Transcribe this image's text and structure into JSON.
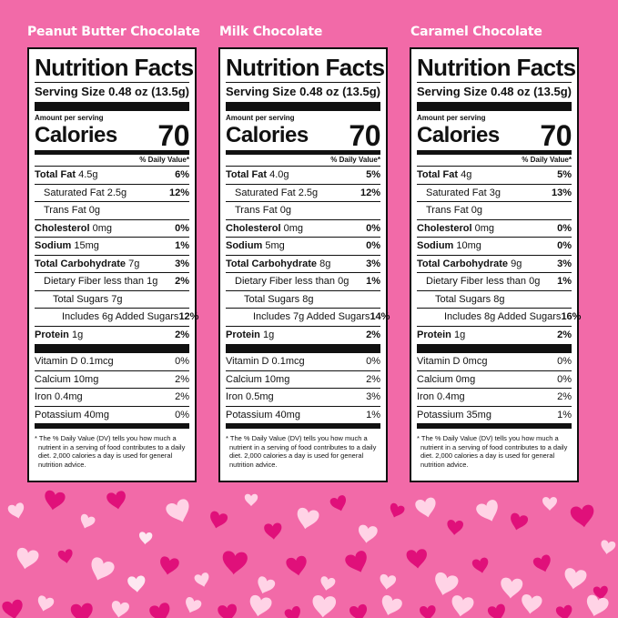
{
  "panels": [
    {
      "product": "Peanut Butter Chocolate",
      "title": "Nutrition Facts",
      "serving_label": "Serving Size",
      "serving_value": "0.48 oz (13.5g)",
      "amount_per_serving": "Amount per serving",
      "calories_label": "Calories",
      "calories_value": "70",
      "dv_header": "% Daily Value*",
      "nutrients": [
        {
          "name": "Total Fat",
          "amount": "4.5g",
          "dv": "6%",
          "bold": true,
          "indent": 0
        },
        {
          "name": "Saturated Fat",
          "amount": "2.5g",
          "dv": "12%",
          "bold": false,
          "indent": 1
        },
        {
          "name": "Trans Fat",
          "amount": "0g",
          "dv": "",
          "bold": false,
          "indent": 1
        },
        {
          "name": "Cholesterol",
          "amount": "0mg",
          "dv": "0%",
          "bold": true,
          "indent": 0
        },
        {
          "name": "Sodium",
          "amount": "15mg",
          "dv": "1%",
          "bold": true,
          "indent": 0
        },
        {
          "name": "Total Carbohydrate",
          "amount": "7g",
          "dv": "3%",
          "bold": true,
          "indent": 0
        },
        {
          "name": "Dietary Fiber less than",
          "amount": "1g",
          "dv": "2%",
          "bold": false,
          "indent": 1
        },
        {
          "name": "Total Sugars",
          "amount": "7g",
          "dv": "",
          "bold": false,
          "indent": 2
        },
        {
          "name": "Includes 6g Added Sugars",
          "amount": "",
          "dv": "12%",
          "bold": false,
          "indent": 3
        },
        {
          "name": "Protein",
          "amount": "1g",
          "dv": "2%",
          "bold": true,
          "indent": 0
        }
      ],
      "vitamins": [
        {
          "name": "Vitamin D",
          "amount": "0.1mcg",
          "dv": "0%"
        },
        {
          "name": "Calcium",
          "amount": "10mg",
          "dv": "2%"
        },
        {
          "name": "Iron",
          "amount": "0.4mg",
          "dv": "2%"
        },
        {
          "name": "Potassium",
          "amount": "40mg",
          "dv": "0%"
        }
      ],
      "footnote": "* The % Daily Value (DV) tells you how much a nutrient in a serving of food contributes to a daily diet. 2,000 calories a day is used for general nutrition advice."
    },
    {
      "product": "Milk Chocolate",
      "title": "Nutrition Facts",
      "serving_label": "Serving Size",
      "serving_value": "0.48 oz (13.5g)",
      "amount_per_serving": "Amount per serving",
      "calories_label": "Calories",
      "calories_value": "70",
      "dv_header": "% Daily Value*",
      "nutrients": [
        {
          "name": "Total Fat",
          "amount": "4.0g",
          "dv": "5%",
          "bold": true,
          "indent": 0
        },
        {
          "name": "Saturated Fat",
          "amount": "2.5g",
          "dv": "12%",
          "bold": false,
          "indent": 1
        },
        {
          "name": "Trans Fat",
          "amount": "0g",
          "dv": "",
          "bold": false,
          "indent": 1
        },
        {
          "name": "Cholesterol",
          "amount": "0mg",
          "dv": "0%",
          "bold": true,
          "indent": 0
        },
        {
          "name": "Sodium",
          "amount": "5mg",
          "dv": "0%",
          "bold": true,
          "indent": 0
        },
        {
          "name": "Total Carbohydrate",
          "amount": "8g",
          "dv": "3%",
          "bold": true,
          "indent": 0
        },
        {
          "name": "Dietary Fiber less than",
          "amount": "0g",
          "dv": "1%",
          "bold": false,
          "indent": 1
        },
        {
          "name": "Total Sugars",
          "amount": "8g",
          "dv": "",
          "bold": false,
          "indent": 2
        },
        {
          "name": "Includes 7g Added Sugars",
          "amount": "",
          "dv": "14%",
          "bold": false,
          "indent": 3
        },
        {
          "name": "Protein",
          "amount": "1g",
          "dv": "2%",
          "bold": true,
          "indent": 0
        }
      ],
      "vitamins": [
        {
          "name": "Vitamin D",
          "amount": "0.1mcg",
          "dv": "0%"
        },
        {
          "name": "Calcium",
          "amount": "10mg",
          "dv": "2%"
        },
        {
          "name": "Iron",
          "amount": "0.5mg",
          "dv": "3%"
        },
        {
          "name": "Potassium",
          "amount": "40mg",
          "dv": "1%"
        }
      ],
      "footnote": "* The % Daily Value (DV) tells you how much a nutrient in a serving of food contributes to a daily diet. 2,000 calories a day is used for general nutrition advice."
    },
    {
      "product": "Caramel Chocolate",
      "title": "Nutrition Facts",
      "serving_label": "Serving Size",
      "serving_value": "0.48 oz (13.5g)",
      "amount_per_serving": "Amount per serving",
      "calories_label": "Calories",
      "calories_value": "70",
      "dv_header": "% Daily Value*",
      "nutrients": [
        {
          "name": "Total Fat",
          "amount": "4g",
          "dv": "5%",
          "bold": true,
          "indent": 0
        },
        {
          "name": "Saturated Fat",
          "amount": "3g",
          "dv": "13%",
          "bold": false,
          "indent": 1
        },
        {
          "name": "Trans Fat",
          "amount": "0g",
          "dv": "",
          "bold": false,
          "indent": 1
        },
        {
          "name": "Cholesterol",
          "amount": "0mg",
          "dv": "0%",
          "bold": true,
          "indent": 0
        },
        {
          "name": "Sodium",
          "amount": "10mg",
          "dv": "0%",
          "bold": true,
          "indent": 0
        },
        {
          "name": "Total Carbohydrate",
          "amount": "9g",
          "dv": "3%",
          "bold": true,
          "indent": 0
        },
        {
          "name": "Dietary Fiber less than",
          "amount": "0g",
          "dv": "1%",
          "bold": false,
          "indent": 1
        },
        {
          "name": "Total Sugars",
          "amount": "8g",
          "dv": "",
          "bold": false,
          "indent": 2
        },
        {
          "name": "Includes 8g Added Sugars",
          "amount": "",
          "dv": "16%",
          "bold": false,
          "indent": 3
        },
        {
          "name": "Protein",
          "amount": "1g",
          "dv": "2%",
          "bold": true,
          "indent": 0
        }
      ],
      "vitamins": [
        {
          "name": "Vitamin D",
          "amount": "0mcg",
          "dv": "0%"
        },
        {
          "name": "Calcium",
          "amount": "0mg",
          "dv": "0%"
        },
        {
          "name": "Iron",
          "amount": "0.4mg",
          "dv": "2%"
        },
        {
          "name": "Potassium",
          "amount": "35mg",
          "dv": "1%"
        }
      ],
      "footnote": "* The % Daily Value (DV) tells you how much a nutrient in a serving of food contributes to a daily diet. 2,000 calories a day is used for general nutrition advice."
    }
  ],
  "background": {
    "color": "#f26aa8",
    "heart_colors": [
      "#ffd3e6",
      "#e0107a",
      "#fde8f1"
    ]
  }
}
